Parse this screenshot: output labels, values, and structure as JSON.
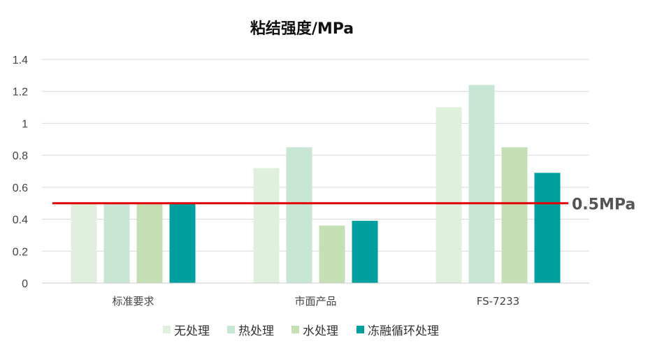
{
  "chart_data": {
    "type": "bar",
    "title": "粘结强度/MPa",
    "categories": [
      "标准要求",
      "市面产品",
      "FS-7233"
    ],
    "series": [
      {
        "name": "无处理",
        "values": [
          0.5,
          0.72,
          1.1
        ],
        "color": "#dff0dc"
      },
      {
        "name": "热处理",
        "values": [
          0.5,
          0.85,
          1.24
        ],
        "color": "#c8e6d4"
      },
      {
        "name": "水处理",
        "values": [
          0.5,
          0.36,
          0.85
        ],
        "color": "#c5dfb4"
      },
      {
        "name": "冻融循环处理",
        "values": [
          0.5,
          0.39,
          0.69
        ],
        "color": "#009e9e"
      }
    ],
    "ylim": [
      0,
      1.4
    ],
    "yticks": [
      "0",
      "0.2",
      "0.4",
      "0.6",
      "0.8",
      "1",
      "1.2",
      "1.4"
    ],
    "grid": true,
    "legend_position": "bottom",
    "threshold": {
      "value": 0.5,
      "label": "0.5MPa",
      "color": "#e00000"
    }
  }
}
